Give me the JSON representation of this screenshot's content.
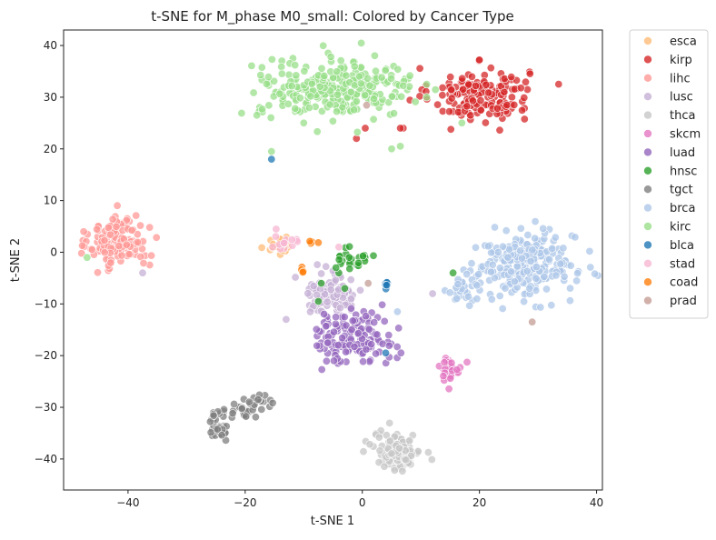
{
  "chart_data": {
    "type": "scatter",
    "title": "t-SNE for M_phase M0_small: Colored by Cancer Type",
    "xlabel": "t-SNE 1",
    "ylabel": "t-SNE 2",
    "xlim": [
      -51,
      41
    ],
    "ylim": [
      -46,
      43
    ],
    "xticks": [
      -40,
      -20,
      0,
      20,
      40
    ],
    "yticks": [
      -40,
      -30,
      -20,
      -10,
      0,
      10,
      20,
      30,
      40
    ],
    "xtick_labels": [
      "−40",
      "−20",
      "0",
      "20",
      "40"
    ],
    "ytick_labels": [
      "−40",
      "−30",
      "−20",
      "−10",
      "0",
      "10",
      "20",
      "30",
      "40"
    ],
    "grid": false,
    "legend_position": "outside-right",
    "series": [
      {
        "name": "esca",
        "color": "#ffbb78",
        "clusters": [
          {
            "cx": -14.5,
            "cy": 1.5,
            "sx": 1.5,
            "sy": 1.0,
            "n": 18
          }
        ]
      },
      {
        "name": "kirp",
        "color": "#d62728",
        "clusters": [
          {
            "cx": 20,
            "cy": 30.5,
            "sx": 4.2,
            "sy": 2.6,
            "n": 170
          }
        ],
        "points": [
          [
            7,
            24
          ],
          [
            -1,
            22
          ],
          [
            0.5,
            24
          ],
          [
            6.5,
            24
          ]
        ]
      },
      {
        "name": "lihc",
        "color": "#ff9896",
        "clusters": [
          {
            "cx": -41.5,
            "cy": 2.0,
            "sx": 2.5,
            "sy": 2.6,
            "n": 150
          }
        ]
      },
      {
        "name": "lusc",
        "color": "#c5b0d5",
        "clusters": [
          {
            "cx": -5,
            "cy": -8,
            "sx": 2.5,
            "sy": 2.0,
            "n": 90
          }
        ],
        "points": [
          [
            -37.5,
            -4
          ],
          [
            -13,
            -13
          ],
          [
            12,
            -8
          ]
        ]
      },
      {
        "name": "thca",
        "color": "#c7c7c7",
        "clusters": [
          {
            "cx": 6,
            "cy": -38.5,
            "sx": 2.0,
            "sy": 1.8,
            "n": 130
          }
        ]
      },
      {
        "name": "skcm",
        "color": "#e377c2",
        "clusters": [
          {
            "cx": 15,
            "cy": -22.5,
            "sx": 1.0,
            "sy": 1.2,
            "n": 28
          }
        ]
      },
      {
        "name": "luad",
        "color": "#9467bd",
        "clusters": [
          {
            "cx": -1.5,
            "cy": -16.5,
            "sx": 3.5,
            "sy": 2.5,
            "n": 140
          }
        ]
      },
      {
        "name": "hnsc",
        "color": "#2ca02c",
        "clusters": [
          {
            "cx": -1.5,
            "cy": -1,
            "sx": 1.2,
            "sy": 1.2,
            "n": 22
          }
        ],
        "points": [
          [
            -7,
            -6
          ],
          [
            -7.5,
            -9.5
          ],
          [
            -4,
            -4
          ],
          [
            -3,
            -7
          ],
          [
            15.5,
            -4
          ],
          [
            -4.5,
            -3
          ]
        ]
      },
      {
        "name": "tgct",
        "color": "#7f7f7f",
        "clusters": [
          {
            "cx": -24.5,
            "cy": -33.5,
            "sx": 1.0,
            "sy": 1.5,
            "n": 40
          },
          {
            "cx": -20,
            "cy": -30.5,
            "sx": 1.5,
            "sy": 0.8,
            "n": 22
          },
          {
            "cx": -17,
            "cy": -28.5,
            "sx": 1.0,
            "sy": 0.8,
            "n": 12
          }
        ]
      },
      {
        "name": "brca",
        "color": "#aec7e8",
        "clusters": [
          {
            "cx": 28,
            "cy": -2.5,
            "sx": 4.2,
            "sy": 3.0,
            "n": 260
          },
          {
            "cx": 17,
            "cy": -7,
            "sx": 1.3,
            "sy": 1.6,
            "n": 30
          }
        ],
        "points": [
          [
            6,
            -11.5
          ]
        ]
      },
      {
        "name": "kirc",
        "color": "#98df8a",
        "clusters": [
          {
            "cx": -4.5,
            "cy": 31.5,
            "sx": 6.5,
            "sy": 2.7,
            "n": 290
          }
        ],
        "points": [
          [
            -47,
            -1
          ],
          [
            -18,
            26.5
          ],
          [
            -15.5,
            19.5
          ],
          [
            5,
            20
          ],
          [
            6.5,
            20.5
          ],
          [
            11,
            30
          ],
          [
            17,
            25
          ],
          [
            11,
            32.5
          ]
        ]
      },
      {
        "name": "blca",
        "color": "#1f77b4",
        "clusters": [
          {
            "cx": 4,
            "cy": -6.5,
            "sx": 0.5,
            "sy": 0.4,
            "n": 6
          }
        ],
        "points": [
          [
            -15.5,
            18
          ],
          [
            4,
            -19.5
          ]
        ]
      },
      {
        "name": "stad",
        "color": "#f7b6d2",
        "clusters": [
          {
            "cx": -13.5,
            "cy": 2.5,
            "sx": 1.8,
            "sy": 1.2,
            "n": 14
          }
        ],
        "points": [
          [
            -4,
            1
          ]
        ]
      },
      {
        "name": "coad",
        "color": "#ff7f0e",
        "clusters": [
          {
            "cx": -8.5,
            "cy": 2,
            "sx": 0.5,
            "sy": 0.2,
            "n": 4
          },
          {
            "cx": -10,
            "cy": -4,
            "sx": 0.3,
            "sy": 0.8,
            "n": 4
          }
        ]
      },
      {
        "name": "prad",
        "color": "#c49c94",
        "clusters": [
          {
            "cx": 0.5,
            "cy": 28.5,
            "sx": 0.1,
            "sy": 0.1,
            "n": 1
          }
        ],
        "points": [
          [
            29,
            -13.5
          ],
          [
            1,
            -6
          ]
        ]
      }
    ]
  }
}
